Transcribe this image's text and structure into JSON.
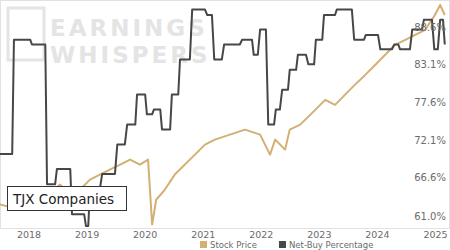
{
  "chart_data": {
    "type": "line",
    "title": "TJX Companies",
    "annotations": [
      "EARNINGS",
      "WHISPERS"
    ],
    "xlim": [
      2017.5,
      2025.25
    ],
    "xticks": [
      2018,
      2019,
      2020,
      2021,
      2022,
      2023,
      2024,
      2025
    ],
    "ylim": [
      59.2,
      92.5
    ],
    "yticks": [
      {
        "value": 61.0,
        "label": "61.0%"
      },
      {
        "value": 66.6,
        "label": "66.6%"
      },
      {
        "value": 72.1,
        "label": "72.1%"
      },
      {
        "value": 77.6,
        "label": "77.6%"
      },
      {
        "value": 83.1,
        "label": "83.1%"
      },
      {
        "value": 88.6,
        "label": "88.6%"
      }
    ],
    "y2lim": [
      25,
      130
    ],
    "grid": false,
    "legend": "bottom",
    "series": [
      {
        "name": "Stock Price",
        "color": "#d2b073",
        "axis": "y2",
        "x": [
          2017.5,
          2017.84,
          2018.1,
          2018.36,
          2018.53,
          2018.71,
          2018.79,
          2018.88,
          2019.05,
          2019.22,
          2019.39,
          2019.57,
          2019.74,
          2019.91,
          2020.05,
          2020.12,
          2020.19,
          2020.34,
          2020.51,
          2020.77,
          2021.03,
          2021.2,
          2021.46,
          2021.72,
          2021.98,
          2022.15,
          2022.24,
          2022.41,
          2022.49,
          2022.67,
          2022.93,
          2023.1,
          2023.27,
          2023.44,
          2023.61,
          2023.79,
          2023.96,
          2024.13,
          2024.3,
          2024.48,
          2024.65,
          2024.82,
          2024.99,
          2025.08,
          2025.16
        ],
        "values": [
          35.8,
          33.5,
          38.0,
          40.4,
          45.0,
          40.4,
          38.0,
          42.7,
          47.3,
          49.6,
          51.9,
          54.2,
          56.5,
          54.2,
          56.5,
          26.6,
          38.0,
          42.7,
          49.6,
          56.5,
          63.4,
          65.7,
          68.0,
          70.3,
          68.0,
          58.8,
          65.7,
          61.1,
          70.3,
          72.6,
          79.4,
          84.0,
          81.7,
          86.3,
          90.9,
          95.5,
          100.1,
          104.7,
          109.3,
          111.6,
          113.9,
          116.2,
          123.1,
          127.7,
          123.1
        ]
      },
      {
        "name": "Net-Buy Percentage",
        "color": "#474747",
        "x": [
          2017.5,
          2017.71,
          2017.74,
          2018.02,
          2018.05,
          2018.28,
          2018.31,
          2018.45,
          2018.48,
          2018.71,
          2018.74,
          2018.95,
          2018.98,
          2019.02,
          2019.05,
          2019.22,
          2019.26,
          2019.48,
          2019.52,
          2019.65,
          2019.69,
          2019.83,
          2019.86,
          2020.0,
          2020.03,
          2020.12,
          2020.15,
          2020.26,
          2020.29,
          2020.43,
          2020.46,
          2020.57,
          2020.6,
          2020.77,
          2020.81,
          2021.03,
          2021.07,
          2021.15,
          2021.19,
          2021.32,
          2021.36,
          2021.63,
          2021.67,
          2021.84,
          2021.87,
          2021.94,
          2021.98,
          2022.08,
          2022.12,
          2022.22,
          2022.25,
          2022.32,
          2022.36,
          2022.46,
          2022.49,
          2022.6,
          2022.63,
          2022.77,
          2022.81,
          2022.91,
          2022.94,
          2023.05,
          2023.08,
          2023.27,
          2023.3,
          2023.56,
          2023.6,
          2023.77,
          2023.8,
          2024.01,
          2024.05,
          2024.25,
          2024.29,
          2024.36,
          2024.39,
          2024.56,
          2024.6,
          2024.77,
          2024.8,
          2024.94,
          2024.98,
          2025.04,
          2025.08,
          2025.13,
          2025.16
        ],
        "values": [
          70.0,
          70.0,
          86.7,
          86.7,
          86.0,
          86.0,
          65.6,
          65.6,
          67.8,
          67.8,
          61.2,
          61.2,
          59.5,
          59.5,
          64.9,
          64.9,
          67.1,
          67.1,
          71.4,
          71.4,
          74.3,
          74.3,
          78.7,
          78.7,
          75.8,
          75.8,
          76.5,
          76.5,
          73.6,
          73.6,
          78.7,
          78.7,
          83.8,
          83.8,
          91.1,
          91.1,
          90.3,
          90.3,
          83.8,
          83.8,
          86.0,
          86.0,
          86.7,
          86.7,
          84.5,
          84.5,
          88.2,
          88.2,
          74.3,
          74.3,
          76.5,
          76.5,
          79.4,
          79.4,
          82.3,
          82.3,
          84.5,
          84.5,
          83.1,
          83.1,
          86.7,
          86.7,
          90.3,
          90.3,
          91.1,
          91.1,
          86.7,
          86.7,
          87.4,
          87.4,
          85.3,
          85.3,
          86.0,
          86.0,
          85.3,
          85.3,
          88.2,
          88.2,
          89.6,
          89.6,
          85.3,
          85.3,
          89.6,
          89.6,
          86.0
        ]
      }
    ]
  }
}
